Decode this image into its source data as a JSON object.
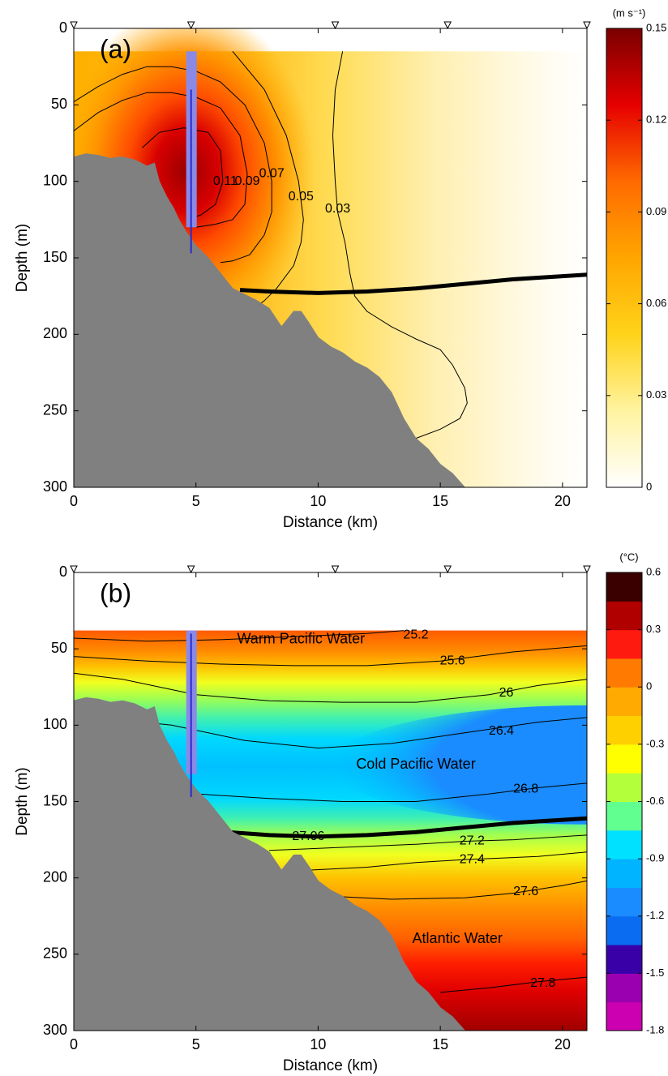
{
  "chart_data": [
    {
      "type": "contour",
      "panel_label": "(a)",
      "xlabel": "Distance (km)",
      "ylabel": "Depth (m)",
      "xlim": [
        0,
        21
      ],
      "xticks": [
        0,
        5,
        10,
        15,
        20
      ],
      "ylim": [
        300,
        0
      ],
      "yticks": [
        0,
        50,
        100,
        150,
        200,
        250,
        300
      ],
      "colorbar": {
        "label": "(m s⁻¹)",
        "lim": [
          0,
          0.15
        ],
        "ticks": [
          0,
          0.03,
          0.06,
          0.09,
          0.12,
          0.15
        ],
        "continuous": true,
        "colors": [
          "#ffffff",
          "#fff3a0",
          "#ffd31a",
          "#ffa600",
          "#ff6a00",
          "#e60000",
          "#7a0000"
        ]
      },
      "field_top": 15,
      "stations": [
        0,
        4.8,
        10.7,
        15.3,
        21
      ],
      "mooring": {
        "x": 4.8,
        "top": 15,
        "bottom": 130,
        "line_top": 40,
        "line_bottom": 147
      },
      "bathymetry": {
        "x": [
          0,
          0.5,
          1,
          1.5,
          2,
          2.5,
          3,
          3.3,
          3.5,
          3.8,
          4.1,
          4.3,
          4.6,
          5,
          5.5,
          6,
          6.5,
          7,
          7.5,
          8,
          8.5,
          8.8,
          9,
          9.3,
          9.6,
          10,
          10.5,
          11,
          11.5,
          12,
          12.5,
          13,
          13.5,
          14,
          14.5,
          15,
          15.5,
          16
        ],
        "depth": [
          84,
          82,
          83,
          85,
          84,
          86,
          90,
          88,
          100,
          110,
          118,
          125,
          133,
          142,
          150,
          160,
          170,
          174,
          178,
          183,
          195,
          189,
          185,
          185,
          192,
          202,
          208,
          212,
          218,
          222,
          228,
          238,
          255,
          268,
          275,
          285,
          291,
          300
        ]
      },
      "isopycnal": {
        "x": [
          6.8,
          8,
          10,
          12,
          14,
          16,
          18,
          20,
          21
        ],
        "depth": [
          171,
          172,
          173,
          172,
          170,
          167,
          164,
          162,
          161
        ]
      },
      "contours": [
        {
          "level": 0.11,
          "x": [
            2.8,
            3.5,
            4.5,
            5.5,
            6,
            6.1,
            5.8,
            5.2,
            4.8
          ],
          "depth": [
            78,
            68,
            65,
            68,
            80,
            100,
            115,
            122,
            124
          ],
          "label_x": 6.2,
          "label_depth": 100
        },
        {
          "level": 0.09,
          "x": [
            0,
            1,
            2,
            3,
            4,
            5,
            6,
            6.8,
            7.1,
            7,
            6.5,
            5.8,
            5
          ],
          "depth": [
            67,
            55,
            47,
            42,
            42,
            45,
            52,
            70,
            95,
            115,
            125,
            128,
            130
          ],
          "label_x": 7.1,
          "label_depth": 100
        },
        {
          "level": 0.07,
          "x": [
            0,
            1,
            2,
            3,
            4,
            5,
            6,
            7,
            7.8,
            8.1,
            8.1,
            7.8,
            7.2,
            6.5,
            6
          ],
          "depth": [
            48,
            38,
            30,
            25,
            25,
            28,
            35,
            50,
            75,
            100,
            120,
            135,
            148,
            152,
            153
          ],
          "label_x": 8.1,
          "label_depth": 95
        },
        {
          "level": 0.05,
          "x": [
            6.5,
            7.8,
            8.7,
            9.2,
            9.4,
            9.3,
            9,
            8.3,
            7.8,
            7.2
          ],
          "depth": [
            15,
            40,
            70,
            100,
            125,
            140,
            155,
            170,
            178,
            185
          ],
          "label_x": 9.3,
          "label_depth": 110
        },
        {
          "level": 0.03,
          "x": [
            11,
            10.7,
            10.6,
            10.7,
            10.8,
            11.1,
            11.3,
            11.5,
            12,
            13,
            14,
            15,
            15.5,
            16,
            16.1,
            15.8,
            15,
            14,
            13.8
          ],
          "depth": [
            15,
            40,
            70,
            100,
            120,
            140,
            160,
            175,
            185,
            195,
            203,
            210,
            220,
            235,
            245,
            255,
            262,
            268,
            270
          ],
          "label_x": 10.8,
          "label_depth": 118
        }
      ],
      "annotations": []
    },
    {
      "type": "contour",
      "panel_label": "(b)",
      "xlabel": "Distance (km)",
      "ylabel": "Depth (m)",
      "xlim": [
        0,
        21
      ],
      "xticks": [
        0,
        5,
        10,
        15,
        20
      ],
      "ylim": [
        300,
        0
      ],
      "yticks": [
        0,
        50,
        100,
        150,
        200,
        250,
        300
      ],
      "colorbar": {
        "label": "(°C)",
        "lim": [
          -1.8,
          0.6
        ],
        "ticks": [
          -1.8,
          -1.5,
          -1.2,
          -0.9,
          -0.6,
          -0.3,
          0,
          0.3,
          0.6
        ],
        "continuous": false,
        "colors": [
          "#cc00b0",
          "#9a00b0",
          "#3a00a8",
          "#0a6cf0",
          "#1a8cff",
          "#00b4ff",
          "#00e0ff",
          "#60ff90",
          "#b4ff3c",
          "#ffff00",
          "#ffd000",
          "#ffaa00",
          "#ff7a00",
          "#ff1a10",
          "#b00000",
          "#3a0000"
        ]
      },
      "field_top": 38,
      "stations": [
        0,
        4.8,
        10.7,
        15.3,
        21
      ],
      "mooring": {
        "x": 4.8,
        "top": 38,
        "bottom": 132,
        "line_top": 40,
        "line_bottom": 147
      },
      "bathymetry": {
        "x": [
          0,
          0.5,
          1,
          1.5,
          2,
          2.5,
          3,
          3.3,
          3.5,
          3.8,
          4.1,
          4.3,
          4.6,
          5,
          5.5,
          6,
          6.5,
          7,
          7.5,
          8,
          8.5,
          8.8,
          9,
          9.3,
          9.6,
          10,
          10.5,
          11,
          11.5,
          12,
          12.5,
          13,
          13.5,
          14,
          14.5,
          15,
          15.5,
          16
        ],
        "depth": [
          84,
          82,
          83,
          85,
          84,
          86,
          90,
          88,
          100,
          110,
          118,
          125,
          133,
          142,
          150,
          160,
          170,
          174,
          178,
          183,
          195,
          189,
          185,
          185,
          192,
          202,
          208,
          212,
          218,
          222,
          228,
          238,
          255,
          268,
          275,
          285,
          291,
          300
        ]
      },
      "isopycnal": {
        "level": 27.06,
        "x": [
          6.3,
          8,
          10,
          12,
          14,
          16,
          18,
          20,
          21
        ],
        "depth": [
          170,
          172,
          173,
          172,
          170,
          167,
          164,
          162,
          161
        ],
        "label_x": 9.6,
        "label_depth": 173
      },
      "contours": [
        {
          "level": 25.2,
          "x": [
            0,
            3,
            6,
            9,
            12,
            13.5
          ],
          "depth": [
            43,
            45,
            44,
            42,
            40,
            38
          ],
          "label_x": 14,
          "label_depth": 41
        },
        {
          "level": 25.6,
          "x": [
            0,
            3,
            6,
            9,
            12,
            15,
            18,
            21
          ],
          "depth": [
            55,
            58,
            60,
            61,
            61,
            58,
            52,
            48
          ],
          "label_x": 15.5,
          "label_depth": 58
        },
        {
          "level": 26,
          "x": [
            0,
            2,
            5,
            8,
            11,
            14,
            17,
            19,
            21
          ],
          "depth": [
            66,
            70,
            80,
            84,
            85,
            85,
            80,
            74,
            70
          ],
          "label_x": 17.7,
          "label_depth": 79
        },
        {
          "level": 26.4,
          "x": [
            1,
            4,
            7,
            10,
            13,
            16,
            19,
            21
          ],
          "depth": [
            95,
            100,
            110,
            115,
            112,
            105,
            98,
            95
          ],
          "label_x": 17.5,
          "label_depth": 104
        },
        {
          "level": 26.8,
          "x": [
            5,
            8,
            11,
            14,
            17,
            19,
            21
          ],
          "depth": [
            145,
            148,
            150,
            150,
            145,
            141,
            138
          ],
          "label_x": 18.5,
          "label_depth": 142
        },
        {
          "level": 27.2,
          "x": [
            8,
            11,
            14,
            16,
            18,
            20,
            21
          ],
          "depth": [
            182,
            180,
            178,
            176,
            175,
            173,
            172
          ],
          "label_x": 16.3,
          "label_depth": 176
        },
        {
          "level": 27.4,
          "x": [
            9.5,
            12,
            14,
            16,
            19,
            21
          ],
          "depth": [
            195,
            193,
            190,
            188,
            186,
            183
          ],
          "label_x": 16.3,
          "label_depth": 188
        },
        {
          "level": 27.6,
          "x": [
            10.5,
            13,
            16,
            18,
            20,
            21
          ],
          "depth": [
            212,
            214,
            213,
            210,
            205,
            202
          ],
          "label_x": 18.5,
          "label_depth": 209
        },
        {
          "level": 27.8,
          "x": [
            15,
            17,
            19,
            21
          ],
          "depth": [
            275,
            272,
            268,
            265
          ],
          "label_x": 19.2,
          "label_depth": 269
        }
      ],
      "annotations": [
        {
          "text": "Warm Pacific Water",
          "x": 9.3,
          "depth": 44
        },
        {
          "text": "Cold Pacific Water",
          "x": 14,
          "depth": 126
        },
        {
          "text": "Atlantic Water",
          "x": 15.7,
          "depth": 240
        }
      ]
    }
  ]
}
